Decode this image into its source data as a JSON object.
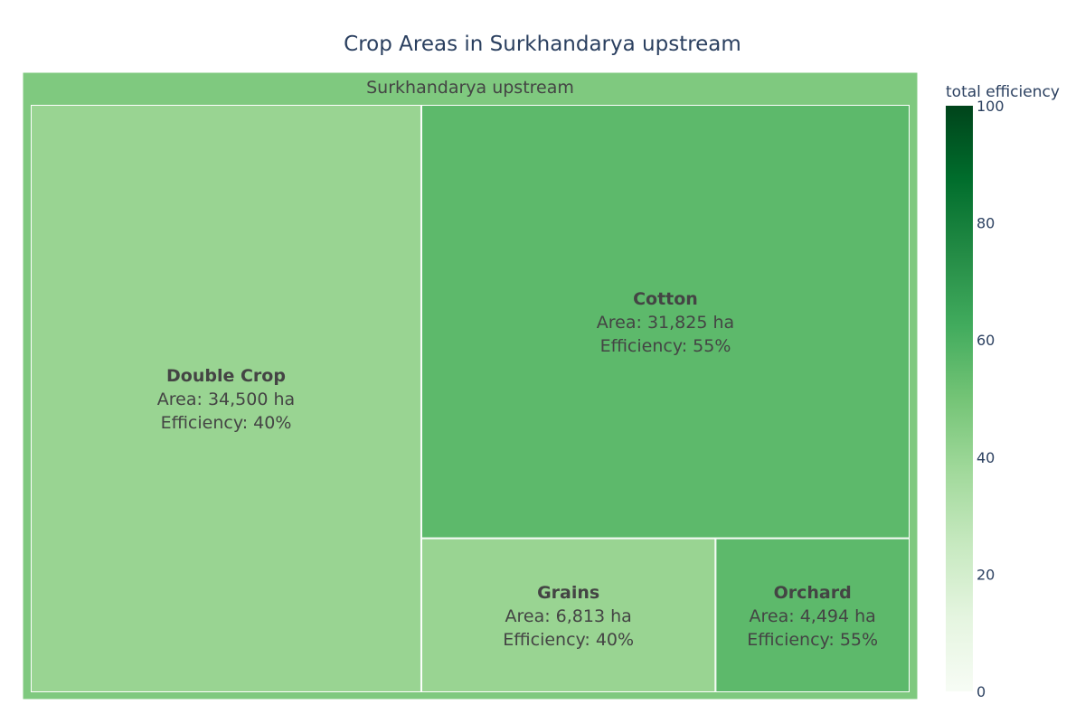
{
  "chart_data": {
    "type": "treemap",
    "title": "Crop Areas in Surkhandarya upstream",
    "root": {
      "label": "Surkhandarya upstream",
      "efficiency": 48.7,
      "color": "#7fc97f"
    },
    "leaves": [
      {
        "name": "Double Crop",
        "area": 34500,
        "area_text": "Area: 34,500 ha",
        "efficiency": 40,
        "efficiency_text": "Efficiency: 40%",
        "color": "#99d492"
      },
      {
        "name": "Cotton",
        "area": 31825,
        "area_text": "Area: 31,825 ha",
        "efficiency": 55,
        "efficiency_text": "Efficiency: 55%",
        "color": "#5db96b"
      },
      {
        "name": "Grains",
        "area": 6813,
        "area_text": "Area: 6,813 ha",
        "efficiency": 40,
        "efficiency_text": "Efficiency: 40%",
        "color": "#99d492"
      },
      {
        "name": "Orchard",
        "area": 4494,
        "area_text": "Area: 4,494 ha",
        "efficiency": 55,
        "efficiency_text": "Efficiency: 55%",
        "color": "#5db96b"
      }
    ],
    "colorbar": {
      "title": "total efficiency",
      "range": [
        0,
        100
      ],
      "ticks": [
        "0",
        "20",
        "40",
        "60",
        "80",
        "100"
      ],
      "colorscale": [
        "#f7fcf5",
        "#e5f5e0",
        "#c7e9c0",
        "#a1d99b",
        "#74c476",
        "#41ab5d",
        "#238b45",
        "#006d2c",
        "#00441b"
      ]
    }
  }
}
